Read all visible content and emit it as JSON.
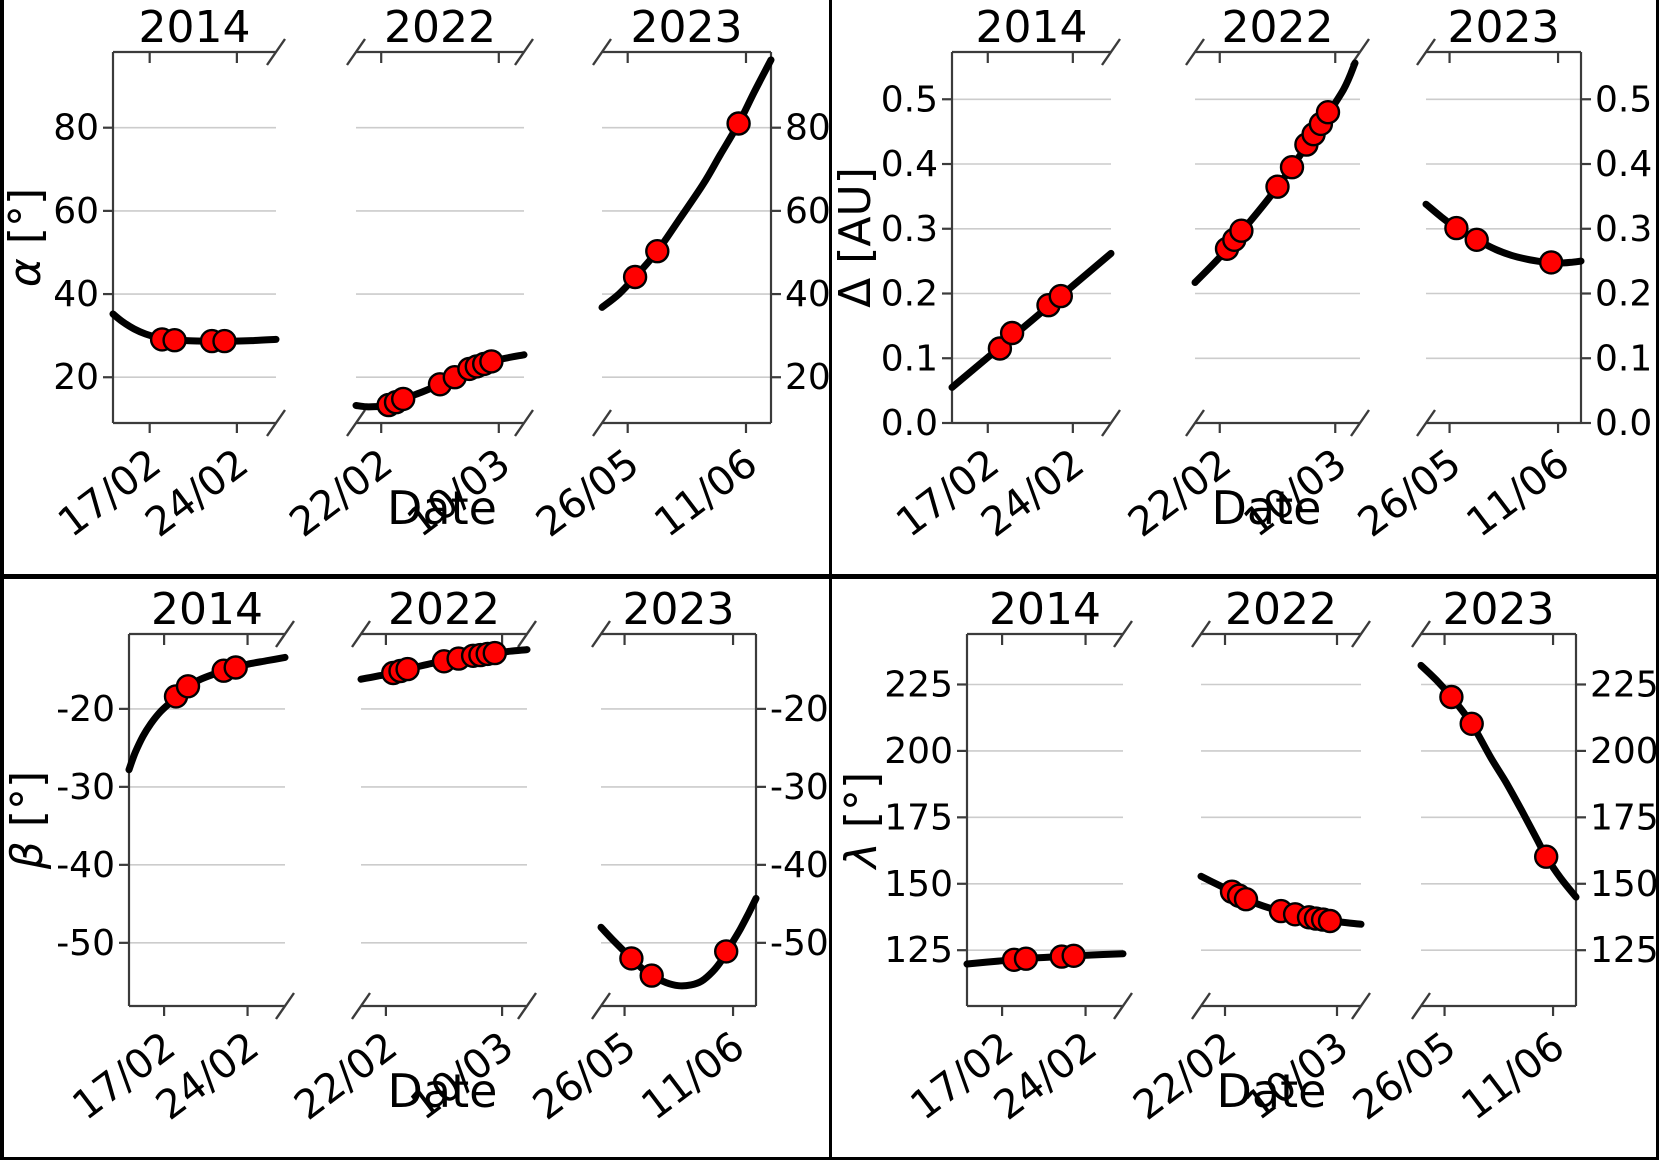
{
  "figure": {
    "xlabel": "Date",
    "panel_titles": [
      "2014",
      "2022",
      "2023"
    ],
    "xticks": {
      "2014": {
        "labels": [
          "17/02",
          "24/02"
        ],
        "pos": [
          0.225,
          0.76
        ]
      },
      "2022": {
        "labels": [
          "22/02",
          "10/03"
        ],
        "pos": [
          0.15,
          0.85
        ]
      },
      "2023": {
        "labels": [
          "26/05",
          "11/06"
        ],
        "pos": [
          0.152,
          0.852
        ]
      }
    },
    "colors": {
      "curve": "#000000",
      "marker": "#ff0000",
      "marker_edge": "#000000",
      "grid": "#cccccc",
      "spine": "#3b3b3b",
      "background": "#ffffff",
      "divider": "#000000"
    }
  },
  "chart_data": [
    {
      "id": "alpha",
      "position": "top-left",
      "type": "line",
      "ylabel": "α [°]",
      "ylabel_symbol": "α",
      "ylabel_unit": " [°]",
      "symbol_italic": true,
      "ylim": [
        9,
        98.2
      ],
      "yticks": [
        20,
        40,
        60,
        80
      ],
      "ytick_labels": [
        "20",
        "40",
        "60",
        "80"
      ],
      "panels": [
        {
          "title": "2014",
          "curve": [
            [
              0,
              35.2
            ],
            [
              0.06,
              33.3
            ],
            [
              0.13,
              31.6
            ],
            [
              0.2,
              30.4
            ],
            [
              0.28,
              29.5
            ],
            [
              0.36,
              29.0
            ],
            [
              0.45,
              28.8
            ],
            [
              0.55,
              28.7
            ],
            [
              0.65,
              28.65
            ],
            [
              0.75,
              28.7
            ],
            [
              0.85,
              28.8
            ],
            [
              1,
              29.1
            ]
          ],
          "observations": [
            {
              "date": "18/02",
              "x": 0.301,
              "value": 29.1
            },
            {
              "date": "19/02",
              "x": 0.378,
              "value": 28.9
            },
            {
              "date": "22/02",
              "x": 0.607,
              "value": 28.7
            },
            {
              "date": "23/02",
              "x": 0.684,
              "value": 28.7
            }
          ]
        },
        {
          "title": "2022",
          "curve": [
            [
              0,
              13.2
            ],
            [
              0.06,
              12.9
            ],
            [
              0.12,
              12.95
            ],
            [
              0.194,
              13.3
            ],
            [
              0.281,
              14.8
            ],
            [
              0.39,
              16.4
            ],
            [
              0.5,
              18.3
            ],
            [
              0.588,
              20.0
            ],
            [
              0.675,
              21.9
            ],
            [
              0.763,
              23.2
            ],
            [
              0.87,
              24.4
            ],
            [
              1,
              25.4
            ]
          ],
          "observations": [
            {
              "date": "23/02",
              "x": 0.194,
              "value": 13.3
            },
            {
              "date": "24/02",
              "x": 0.238,
              "value": 14.0
            },
            {
              "date": "25/02",
              "x": 0.281,
              "value": 14.8
            },
            {
              "date": "02/03",
              "x": 0.5,
              "value": 18.3
            },
            {
              "date": "04/03",
              "x": 0.588,
              "value": 20.0
            },
            {
              "date": "06/03",
              "x": 0.675,
              "value": 22.0
            },
            {
              "date": "07/03",
              "x": 0.719,
              "value": 22.6
            },
            {
              "date": "08/03",
              "x": 0.763,
              "value": 23.2
            },
            {
              "date": "09/03",
              "x": 0.806,
              "value": 23.8
            }
          ]
        },
        {
          "title": "2023",
          "curve": [
            [
              0,
              36.8
            ],
            [
              0.1,
              40.0
            ],
            [
              0.196,
              44.1
            ],
            [
              0.327,
              50.3
            ],
            [
              0.45,
              57.5
            ],
            [
              0.6,
              66.5
            ],
            [
              0.7,
              73.5
            ],
            [
              0.808,
              81.0
            ],
            [
              0.9,
              88.5
            ],
            [
              1,
              96.3
            ]
          ],
          "observations": [
            {
              "date": "27/05",
              "x": 0.196,
              "value": 44.1
            },
            {
              "date": "30/05",
              "x": 0.327,
              "value": 50.3
            },
            {
              "date": "10/06",
              "x": 0.808,
              "value": 81.0
            }
          ]
        }
      ]
    },
    {
      "id": "delta",
      "position": "top-right",
      "type": "line",
      "ylabel": "Δ [AU]",
      "ylabel_symbol": "Δ",
      "ylabel_unit": " [AU]",
      "symbol_italic": false,
      "ylim": [
        0,
        0.573
      ],
      "yticks": [
        0,
        0.1,
        0.2,
        0.3,
        0.4,
        0.5
      ],
      "ytick_labels": [
        "0.0",
        "0.1",
        "0.2",
        "0.3",
        "0.4",
        "0.5"
      ],
      "panels": [
        {
          "title": "2014",
          "curve": [
            [
              0,
              0.055
            ],
            [
              0.5,
              0.158
            ],
            [
              1,
              0.262
            ]
          ],
          "observations": [
            {
              "date": "18/02",
              "x": 0.301,
              "value": 0.115
            },
            {
              "date": "19/02",
              "x": 0.378,
              "value": 0.139
            },
            {
              "date": "22/02",
              "x": 0.607,
              "value": 0.182
            },
            {
              "date": "23/02",
              "x": 0.684,
              "value": 0.196
            }
          ]
        },
        {
          "title": "2022",
          "curve": [
            [
              0,
              0.217
            ],
            [
              0.15,
              0.256
            ],
            [
              0.3,
              0.301
            ],
            [
              0.45,
              0.348
            ],
            [
              0.6,
              0.4
            ],
            [
              0.75,
              0.456
            ],
            [
              0.9,
              0.515
            ],
            [
              0.97,
              0.556
            ]
          ],
          "observations": [
            {
              "date": "23/02",
              "x": 0.194,
              "value": 0.269
            },
            {
              "date": "24/02",
              "x": 0.238,
              "value": 0.283
            },
            {
              "date": "25/02",
              "x": 0.281,
              "value": 0.297
            },
            {
              "date": "02/03",
              "x": 0.5,
              "value": 0.365
            },
            {
              "date": "04/03",
              "x": 0.588,
              "value": 0.395
            },
            {
              "date": "06/03",
              "x": 0.675,
              "value": 0.43
            },
            {
              "date": "07/03",
              "x": 0.719,
              "value": 0.446
            },
            {
              "date": "08/03",
              "x": 0.763,
              "value": 0.462
            },
            {
              "date": "09/03",
              "x": 0.806,
              "value": 0.48
            }
          ]
        },
        {
          "title": "2023",
          "curve": [
            [
              0,
              0.338
            ],
            [
              0.1,
              0.318
            ],
            [
              0.196,
              0.301
            ],
            [
              0.327,
              0.283
            ],
            [
              0.45,
              0.268
            ],
            [
              0.55,
              0.259
            ],
            [
              0.65,
              0.253
            ],
            [
              0.75,
              0.249
            ],
            [
              0.85,
              0.247
            ],
            [
              0.93,
              0.248
            ],
            [
              1,
              0.25
            ]
          ],
          "observations": [
            {
              "date": "27/05",
              "x": 0.196,
              "value": 0.301
            },
            {
              "date": "30/05",
              "x": 0.327,
              "value": 0.283
            },
            {
              "date": "10/06",
              "x": 0.808,
              "value": 0.248
            }
          ]
        }
      ]
    },
    {
      "id": "beta",
      "position": "bottom-left",
      "type": "line",
      "ylabel": "β [°]",
      "ylabel_symbol": "β",
      "ylabel_unit": " [°]",
      "symbol_italic": true,
      "ylim": [
        -58.1,
        -10.4
      ],
      "yticks": [
        -50,
        -40,
        -30,
        -20
      ],
      "ytick_labels": [
        "-50",
        "-40",
        "-30",
        "-20"
      ],
      "panels": [
        {
          "title": "2014",
          "curve": [
            [
              0,
              -27.8
            ],
            [
              0.04,
              -25.6
            ],
            [
              0.09,
              -23.5
            ],
            [
              0.14,
              -21.9
            ],
            [
              0.2,
              -20.4
            ],
            [
              0.27,
              -19.1
            ],
            [
              0.301,
              -18.4
            ],
            [
              0.378,
              -17.1
            ],
            [
              0.46,
              -16.2
            ],
            [
              0.55,
              -15.5
            ],
            [
              0.607,
              -15.1
            ],
            [
              0.684,
              -14.7
            ],
            [
              0.78,
              -14.2
            ],
            [
              0.89,
              -13.8
            ],
            [
              1,
              -13.4
            ]
          ],
          "observations": [
            {
              "date": "18/02",
              "x": 0.301,
              "value": -18.4
            },
            {
              "date": "19/02",
              "x": 0.378,
              "value": -17.1
            },
            {
              "date": "22/02",
              "x": 0.607,
              "value": -15.1
            },
            {
              "date": "23/02",
              "x": 0.684,
              "value": -14.7
            }
          ]
        },
        {
          "title": "2022",
          "curve": [
            [
              0,
              -16.2
            ],
            [
              0.1,
              -15.8
            ],
            [
              0.194,
              -15.4
            ],
            [
              0.3,
              -14.8
            ],
            [
              0.4,
              -14.3
            ],
            [
              0.5,
              -13.9
            ],
            [
              0.6,
              -13.5
            ],
            [
              0.7,
              -13.15
            ],
            [
              0.8,
              -12.85
            ],
            [
              0.9,
              -12.6
            ],
            [
              1,
              -12.4
            ]
          ],
          "observations": [
            {
              "date": "23/02",
              "x": 0.194,
              "value": -15.4
            },
            {
              "date": "24/02",
              "x": 0.238,
              "value": -15.15
            },
            {
              "date": "25/02",
              "x": 0.281,
              "value": -14.9
            },
            {
              "date": "02/03",
              "x": 0.5,
              "value": -13.9
            },
            {
              "date": "04/03",
              "x": 0.588,
              "value": -13.55
            },
            {
              "date": "06/03",
              "x": 0.675,
              "value": -13.2
            },
            {
              "date": "07/03",
              "x": 0.719,
              "value": -13.1
            },
            {
              "date": "08/03",
              "x": 0.763,
              "value": -12.95
            },
            {
              "date": "09/03",
              "x": 0.806,
              "value": -12.85
            }
          ]
        },
        {
          "title": "2023",
          "curve": [
            [
              0,
              -48.0
            ],
            [
              0.09,
              -49.9
            ],
            [
              0.196,
              -52.0
            ],
            [
              0.26,
              -53.2
            ],
            [
              0.327,
              -54.2
            ],
            [
              0.42,
              -55.1
            ],
            [
              0.5,
              -55.5
            ],
            [
              0.58,
              -55.4
            ],
            [
              0.65,
              -54.9
            ],
            [
              0.72,
              -53.7
            ],
            [
              0.78,
              -52.2
            ],
            [
              0.84,
              -50.2
            ],
            [
              0.9,
              -48.2
            ],
            [
              0.95,
              -46.3
            ],
            [
              1,
              -44.3
            ]
          ],
          "observations": [
            {
              "date": "27/05",
              "x": 0.196,
              "value": -52.0
            },
            {
              "date": "30/05",
              "x": 0.327,
              "value": -54.2
            },
            {
              "date": "10/06",
              "x": 0.808,
              "value": -51.1
            }
          ]
        }
      ]
    },
    {
      "id": "lambda",
      "position": "bottom-right",
      "type": "line",
      "ylabel": "λ [°]",
      "ylabel_symbol": "λ",
      "ylabel_unit": " [°]",
      "symbol_italic": true,
      "ylim": [
        104,
        244
      ],
      "yticks": [
        125,
        150,
        175,
        200,
        225
      ],
      "ytick_labels": [
        "125",
        "150",
        "175",
        "200",
        "225"
      ],
      "panels": [
        {
          "title": "2014",
          "curve": [
            [
              0,
              119.8
            ],
            [
              0.2,
              120.9
            ],
            [
              0.4,
              121.9
            ],
            [
              0.6,
              122.6
            ],
            [
              0.8,
              123.2
            ],
            [
              1,
              123.7
            ]
          ],
          "observations": [
            {
              "date": "18/02",
              "x": 0.301,
              "value": 121.4
            },
            {
              "date": "19/02",
              "x": 0.378,
              "value": 121.8
            },
            {
              "date": "22/02",
              "x": 0.607,
              "value": 122.6
            },
            {
              "date": "23/02",
              "x": 0.684,
              "value": 122.9
            }
          ]
        },
        {
          "title": "2022",
          "curve": [
            [
              0,
              152.8
            ],
            [
              0.1,
              149.8
            ],
            [
              0.194,
              147.0
            ],
            [
              0.281,
              144.2
            ],
            [
              0.39,
              141.6
            ],
            [
              0.5,
              139.7
            ],
            [
              0.588,
              138.5
            ],
            [
              0.675,
              137.4
            ],
            [
              0.763,
              136.5
            ],
            [
              0.87,
              135.6
            ],
            [
              1,
              134.8
            ]
          ],
          "observations": [
            {
              "date": "23/02",
              "x": 0.194,
              "value": 147.0
            },
            {
              "date": "24/02",
              "x": 0.238,
              "value": 145.5
            },
            {
              "date": "25/02",
              "x": 0.281,
              "value": 144.2
            },
            {
              "date": "02/03",
              "x": 0.5,
              "value": 139.7
            },
            {
              "date": "04/03",
              "x": 0.588,
              "value": 138.5
            },
            {
              "date": "06/03",
              "x": 0.675,
              "value": 137.4
            },
            {
              "date": "07/03",
              "x": 0.719,
              "value": 136.9
            },
            {
              "date": "08/03",
              "x": 0.763,
              "value": 136.5
            },
            {
              "date": "09/03",
              "x": 0.806,
              "value": 136.0
            }
          ]
        },
        {
          "title": "2023",
          "curve": [
            [
              0,
              232.2
            ],
            [
              0.1,
              226.6
            ],
            [
              0.196,
              220.3
            ],
            [
              0.327,
              210.2
            ],
            [
              0.45,
              197.5
            ],
            [
              0.55,
              188.0
            ],
            [
              0.65,
              177.5
            ],
            [
              0.75,
              166.5
            ],
            [
              0.808,
              160.2
            ],
            [
              0.9,
              152.2
            ],
            [
              1,
              145.0
            ]
          ],
          "observations": [
            {
              "date": "27/05",
              "x": 0.196,
              "value": 220.3
            },
            {
              "date": "30/05",
              "x": 0.327,
              "value": 210.2
            },
            {
              "date": "10/06",
              "x": 0.808,
              "value": 160.2
            }
          ]
        }
      ]
    }
  ]
}
